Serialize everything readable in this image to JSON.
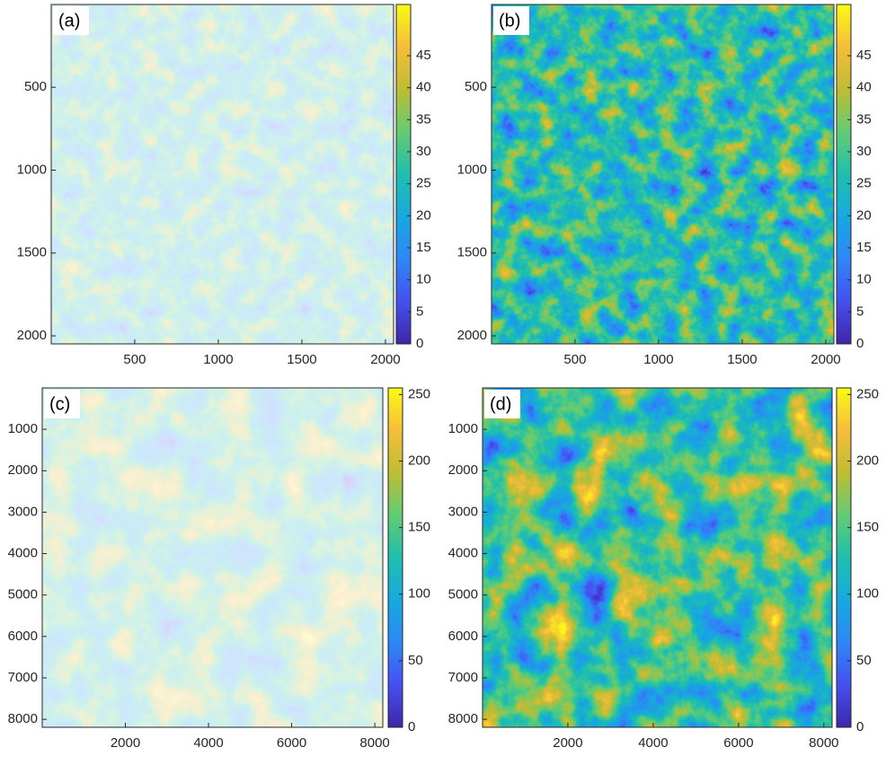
{
  "chart_data": [
    {
      "type": "image",
      "label": "(a)",
      "xlim": [
        0.5,
        2048.5
      ],
      "ylim": [
        0.5,
        2048.5
      ],
      "y_reversed": true,
      "xticks": [
        500,
        1000,
        1500,
        2000
      ],
      "yticks": [
        500,
        1000,
        1500,
        2000
      ],
      "clim": [
        0,
        53
      ],
      "cticks": [
        0,
        5,
        10,
        15,
        20,
        25,
        30,
        35,
        40,
        45
      ],
      "colormap": [
        "#3e26a8",
        "#4550f0",
        "#2e87f7",
        "#17a9df",
        "#1fbfae",
        "#62cc73",
        "#bebd33",
        "#f6bd3a",
        "#f9fb15"
      ],
      "image_alpha": 0.22
    },
    {
      "type": "image",
      "label": "(b)",
      "xlim": [
        0.5,
        2048.5
      ],
      "ylim": [
        0.5,
        2048.5
      ],
      "y_reversed": true,
      "xticks": [
        500,
        1000,
        1500,
        2000
      ],
      "yticks": [
        500,
        1000,
        1500,
        2000
      ],
      "clim": [
        0,
        53
      ],
      "cticks": [
        0,
        5,
        10,
        15,
        20,
        25,
        30,
        35,
        40,
        45
      ],
      "colormap": [
        "#3e26a8",
        "#4550f0",
        "#2e87f7",
        "#17a9df",
        "#1fbfae",
        "#62cc73",
        "#bebd33",
        "#f6bd3a",
        "#f9fb15"
      ],
      "image_alpha": 1
    },
    {
      "type": "image",
      "label": "(c)",
      "xlim": [
        0.5,
        8192.5
      ],
      "ylim": [
        0.5,
        8192.5
      ],
      "y_reversed": true,
      "xticks": [
        2000,
        4000,
        6000,
        8000
      ],
      "yticks": [
        1000,
        2000,
        3000,
        4000,
        5000,
        6000,
        7000,
        8000
      ],
      "clim": [
        0,
        255
      ],
      "cticks": [
        0,
        50,
        100,
        150,
        200,
        250
      ],
      "colormap": [
        "#3e26a8",
        "#4550f0",
        "#2e87f7",
        "#17a9df",
        "#1fbfae",
        "#62cc73",
        "#bebd33",
        "#f6bd3a",
        "#f9fb15"
      ],
      "image_alpha": 0.22
    },
    {
      "type": "image",
      "label": "(d)",
      "xlim": [
        0.5,
        8192.5
      ],
      "ylim": [
        0.5,
        8192.5
      ],
      "y_reversed": true,
      "xticks": [
        2000,
        4000,
        6000,
        8000
      ],
      "yticks": [
        1000,
        2000,
        3000,
        4000,
        5000,
        6000,
        7000,
        8000
      ],
      "clim": [
        0,
        255
      ],
      "cticks": [
        0,
        50,
        100,
        150,
        200,
        250
      ],
      "colormap": [
        "#3e26a8",
        "#4550f0",
        "#2e87f7",
        "#17a9df",
        "#1fbfae",
        "#62cc73",
        "#bebd33",
        "#f6bd3a",
        "#f9fb15"
      ],
      "image_alpha": 1
    }
  ]
}
